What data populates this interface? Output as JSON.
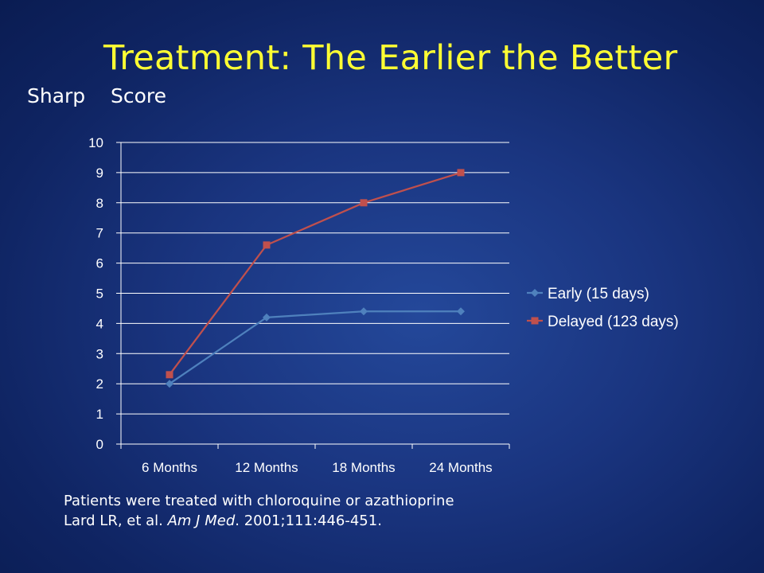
{
  "slide": {
    "title": "Treatment: The Earlier the Better",
    "footnote": {
      "line1": "Patients were treated with chloroquine or azathioprine",
      "citation_prefix": "Lard LR, et al. ",
      "citation_journal": "Am J Med",
      "citation_suffix": ". 2001;111:446-451."
    }
  },
  "chart_data": {
    "type": "line",
    "ylabel": "Sharp    Score",
    "categories": [
      "6 Months",
      "12 Months",
      "18 Months",
      "24 Months"
    ],
    "series": [
      {
        "name": "Early (15 days)",
        "values": [
          2.0,
          4.2,
          4.4,
          4.4
        ],
        "color": "#4f81bd",
        "marker": "diamond"
      },
      {
        "name": "Delayed (123 days)",
        "values": [
          2.3,
          6.6,
          8.0,
          9.0
        ],
        "color": "#c0504d",
        "marker": "square"
      }
    ],
    "ylim": [
      0,
      10
    ],
    "yticks": [
      0,
      1,
      2,
      3,
      4,
      5,
      6,
      7,
      8,
      9,
      10
    ],
    "grid": true,
    "legend_position": "right"
  },
  "colors": {
    "title": "#ffff33",
    "text": "#ffffff",
    "gridline": "#ffffff"
  }
}
